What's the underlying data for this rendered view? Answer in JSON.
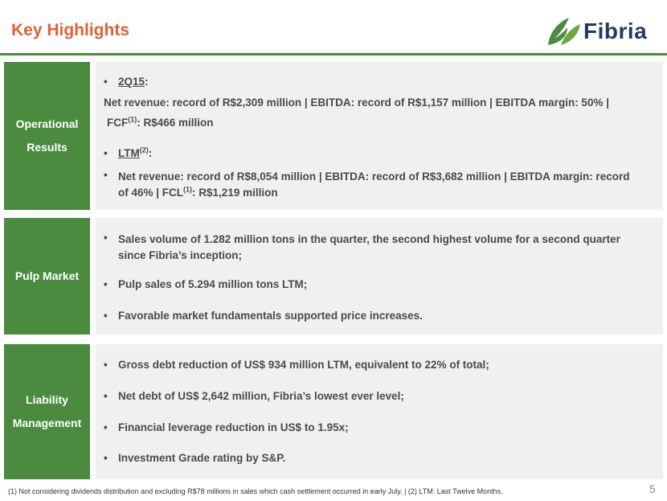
{
  "header": {
    "title": "Key Highlights",
    "logo_text": "Fibria"
  },
  "colors": {
    "green": "#4a8b3f",
    "title_orange": "#e0603a",
    "logo_navy": "#243b65",
    "panel_grey": "#f0f0f0"
  },
  "operational": {
    "label_line1": "Operational",
    "label_line2": "Results",
    "q_period": "2Q15",
    "q_colon": ":",
    "q_line1": "Net revenue: record of R$2,309 million | EBITDA: record of R$1,157 million | EBITDA margin: 50% |",
    "q_fcf": "FCF",
    "q_fcf_sup": "(1)",
    "q_fcf_value": ": R$466 million",
    "ltm_label": "LTM",
    "ltm_sup": "(2)",
    "ltm_colon": ":",
    "ltm_line1": "Net revenue: record of R$8,054 million | EBITDA: record of R$3,682 million | EBITDA margin: record",
    "ltm_line2a": "of 46% |  FCL",
    "ltm_line2_sup": "(1)",
    "ltm_line2b": ": R$1,219 million"
  },
  "pulp": {
    "label": "Pulp Market",
    "item1_line1": "Sales volume of 1.282 million tons in the quarter, the second highest volume for a second quarter",
    "item1_line2": "since Fibria’s inception;",
    "item2": "Pulp sales of 5.294 million tons LTM;",
    "item3": "Favorable market fundamentals supported price increases."
  },
  "liability": {
    "label_line1": "Liability",
    "label_line2": "Management",
    "item1": "Gross debt reduction of US$ 934 million LTM, equivalent to 22% of total;",
    "item2": "Net debt of US$ 2,642 million, Fibria’s lowest ever level;",
    "item3": "Financial leverage reduction in US$ to 1.95x;",
    "item4": "Investment Grade rating by S&P."
  },
  "footer": {
    "footnote": "(1) Not considering dividends distribution and excluding R$78 millions in sales which cash settlement occurred in early July. |  (2) LTM: Last Twelve Months.",
    "page_number": "5"
  }
}
